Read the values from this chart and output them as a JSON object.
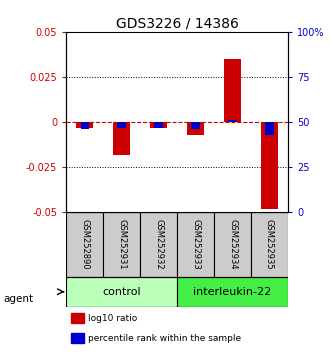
{
  "title": "GDS3226 / 14386",
  "categories": [
    "GSM252890",
    "GSM252931",
    "GSM252932",
    "GSM252933",
    "GSM252934",
    "GSM252935"
  ],
  "log10_ratio": [
    -0.003,
    -0.018,
    -0.003,
    -0.007,
    0.035,
    -0.048
  ],
  "percentile_rank_raw": [
    46,
    47,
    47,
    46,
    51,
    43
  ],
  "ylim_left": [
    -0.05,
    0.05
  ],
  "ylim_right": [
    0,
    100
  ],
  "yticks_left": [
    -0.05,
    -0.025,
    0,
    0.025,
    0.05
  ],
  "yticks_right": [
    0,
    25,
    50,
    75,
    100
  ],
  "bar_width": 0.45,
  "red_color": "#cc0000",
  "blue_color": "#0000cc",
  "zero_line_color": "#cc0000",
  "groups": [
    {
      "label": "control",
      "indices": [
        0,
        1,
        2
      ],
      "color": "#bbffbb"
    },
    {
      "label": "interleukin-22",
      "indices": [
        3,
        4,
        5
      ],
      "color": "#44ee44"
    }
  ],
  "agent_label": "agent",
  "legend_red": "log10 ratio",
  "legend_blue": "percentile rank within the sample",
  "title_fontsize": 10,
  "tick_fontsize": 7,
  "label_fontsize": 7.5,
  "sample_fontsize": 6,
  "group_fontsize": 8
}
